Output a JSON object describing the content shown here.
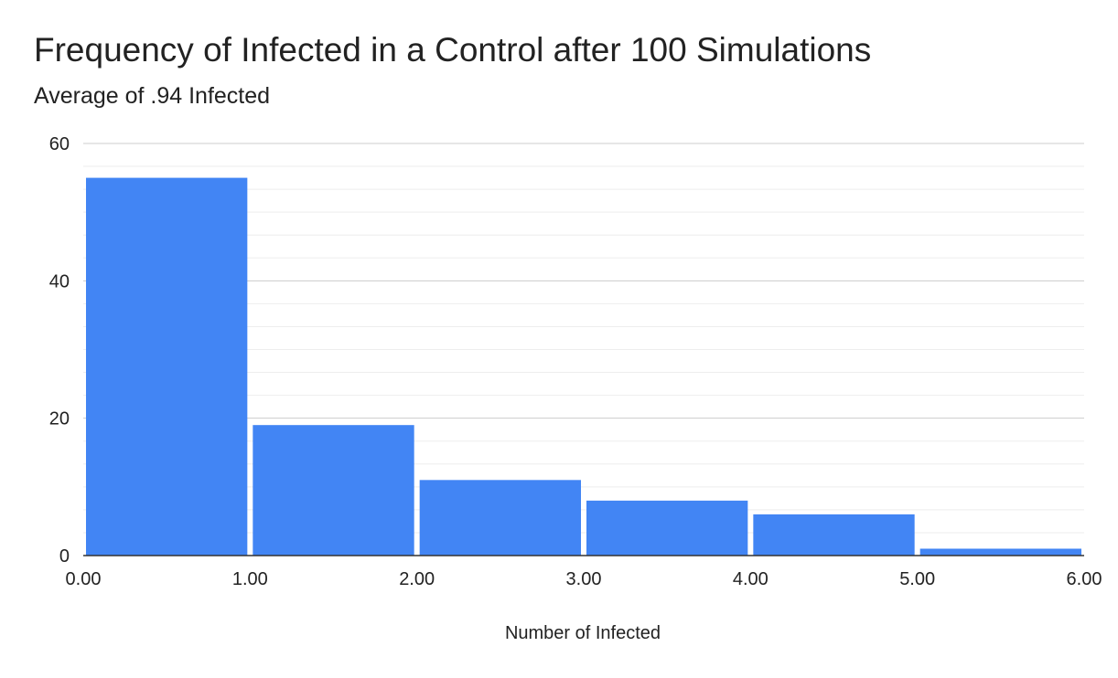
{
  "chart_data": {
    "type": "bar",
    "title": "Frequency of Infected in a Control after 100 Simulations",
    "subtitle": "Average of .94 Infected",
    "xlabel": "Number of Infected",
    "ylabel": "",
    "bins": [
      [
        0,
        1
      ],
      [
        1,
        2
      ],
      [
        2,
        3
      ],
      [
        3,
        4
      ],
      [
        4,
        5
      ],
      [
        5,
        6
      ]
    ],
    "values": [
      55,
      19,
      11,
      8,
      6,
      1
    ],
    "xlim": [
      0,
      6
    ],
    "ylim": [
      0,
      60
    ],
    "x_ticks": [
      "0.00",
      "1.00",
      "2.00",
      "3.00",
      "4.00",
      "5.00",
      "6.00"
    ],
    "y_ticks": [
      "0",
      "20",
      "40",
      "60"
    ],
    "y_tick_values": [
      0,
      20,
      40,
      60
    ],
    "grid": true,
    "minor_grid": true,
    "legend": "none",
    "bar_color": "#4285f4"
  }
}
